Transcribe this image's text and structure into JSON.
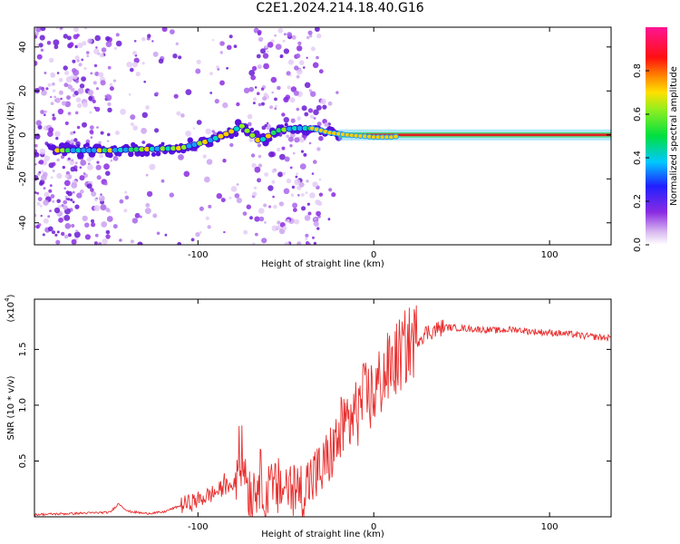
{
  "title": "C2E1.2024.214.18.40.G16",
  "colors": {
    "snr_line": "#e8302f",
    "scatter_purple": "#7a1ff0",
    "axis": "#000000"
  },
  "chart_data": [
    {
      "type": "heatmap",
      "title": "C2E1.2024.214.18.40.G16",
      "xlabel": "Height of straight line (km)",
      "ylabel": "Frequency (Hz)",
      "xlim": [
        -193,
        135
      ],
      "ylim": [
        -50,
        49
      ],
      "xticks": [
        -100,
        0,
        100
      ],
      "xtick_labels": [
        "-100",
        "0",
        "100"
      ],
      "yticks": [
        -40,
        -20,
        0,
        20,
        40
      ],
      "ytick_labels": [
        "-40",
        "-20",
        "0",
        "20",
        "40"
      ],
      "colorbar": {
        "label": "Normalized spectral amplitude",
        "range": [
          0,
          1
        ],
        "ticks": [
          0.0,
          0.2,
          0.4,
          0.6,
          0.8
        ],
        "tick_labels": [
          "0.0",
          "0.2",
          "0.4",
          "0.6",
          "0.8"
        ],
        "colormap": "rainbow (white→purple→blue→cyan→green→yellow→red→magenta)"
      },
      "ridge": {
        "description": "dominant frequency track",
        "x": [
          -170,
          -150,
          -130,
          -110,
          -95,
          -85,
          -75,
          -65,
          -55,
          -45,
          -35,
          -25,
          -15,
          0,
          10,
          20,
          40,
          60,
          80,
          100,
          120,
          133
        ],
        "freq": [
          -7,
          -7,
          -6.5,
          -6,
          -3,
          0,
          4,
          -3,
          2,
          3,
          3,
          1,
          0,
          -1,
          -1,
          0,
          0,
          0,
          0,
          0,
          0,
          0
        ]
      }
    },
    {
      "type": "line",
      "title": "",
      "xlabel": "Height of straight line (km)",
      "ylabel": "SNR (10 * v/v)",
      "y_multiplier_label": "(x10",
      "y_multiplier_exp": "4",
      "xlim": [
        -193,
        135
      ],
      "ylim": [
        0,
        1.95
      ],
      "xticks": [
        -100,
        0,
        100
      ],
      "xtick_labels": [
        "-100",
        "0",
        "100"
      ],
      "yticks": [
        0.5,
        1.0,
        1.5
      ],
      "ytick_labels": [
        "0.5",
        "1.0",
        "1.5"
      ],
      "series": [
        {
          "x": [
            -193,
            -170,
            -150,
            -145,
            -140,
            -130,
            -120,
            -110,
            -100,
            -90,
            -80,
            -75,
            -70,
            -65,
            -60,
            -55,
            -50,
            -45,
            -40,
            -35,
            -30,
            -25,
            -20,
            -15,
            -10,
            -5,
            0,
            5,
            10,
            15,
            20,
            25,
            30,
            40,
            50,
            60,
            70,
            80,
            90,
            100,
            110,
            120,
            135
          ],
          "y": [
            0.02,
            0.03,
            0.04,
            0.12,
            0.05,
            0.03,
            0.04,
            0.1,
            0.15,
            0.22,
            0.3,
            0.55,
            0.2,
            0.35,
            0.2,
            0.25,
            0.28,
            0.22,
            0.25,
            0.35,
            0.4,
            0.55,
            0.7,
            0.85,
            0.95,
            1.05,
            1.1,
            1.25,
            1.35,
            1.45,
            1.55,
            1.6,
            1.65,
            1.7,
            1.69,
            1.68,
            1.67,
            1.68,
            1.66,
            1.65,
            1.64,
            1.62,
            1.6
          ]
        }
      ]
    }
  ]
}
